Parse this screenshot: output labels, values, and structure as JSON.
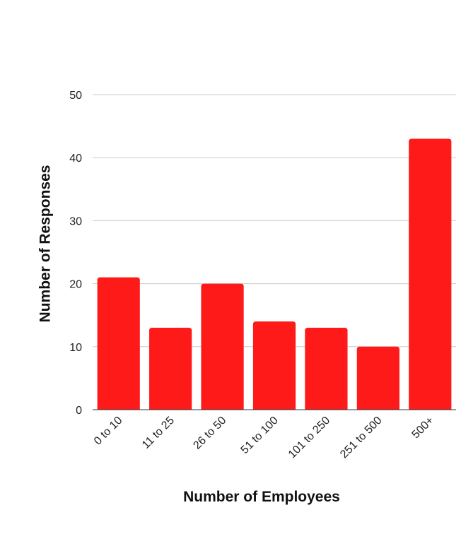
{
  "chart_data": {
    "type": "bar",
    "title": "",
    "xlabel": "Number of Employees",
    "ylabel": "Number of Responses",
    "categories": [
      "0 to 10",
      "11 to 25",
      "26 to 50",
      "51 to 100",
      "101 to 250",
      "251 to 500",
      "500+"
    ],
    "values": [
      21,
      13,
      20,
      14,
      13,
      10,
      43
    ],
    "ylim": [
      0,
      50
    ],
    "yticks": [
      0,
      10,
      20,
      30,
      40,
      50
    ],
    "grid": true,
    "legend": "none",
    "bar_color": "#ff1a1a",
    "gridline_color": "#cccccc"
  }
}
